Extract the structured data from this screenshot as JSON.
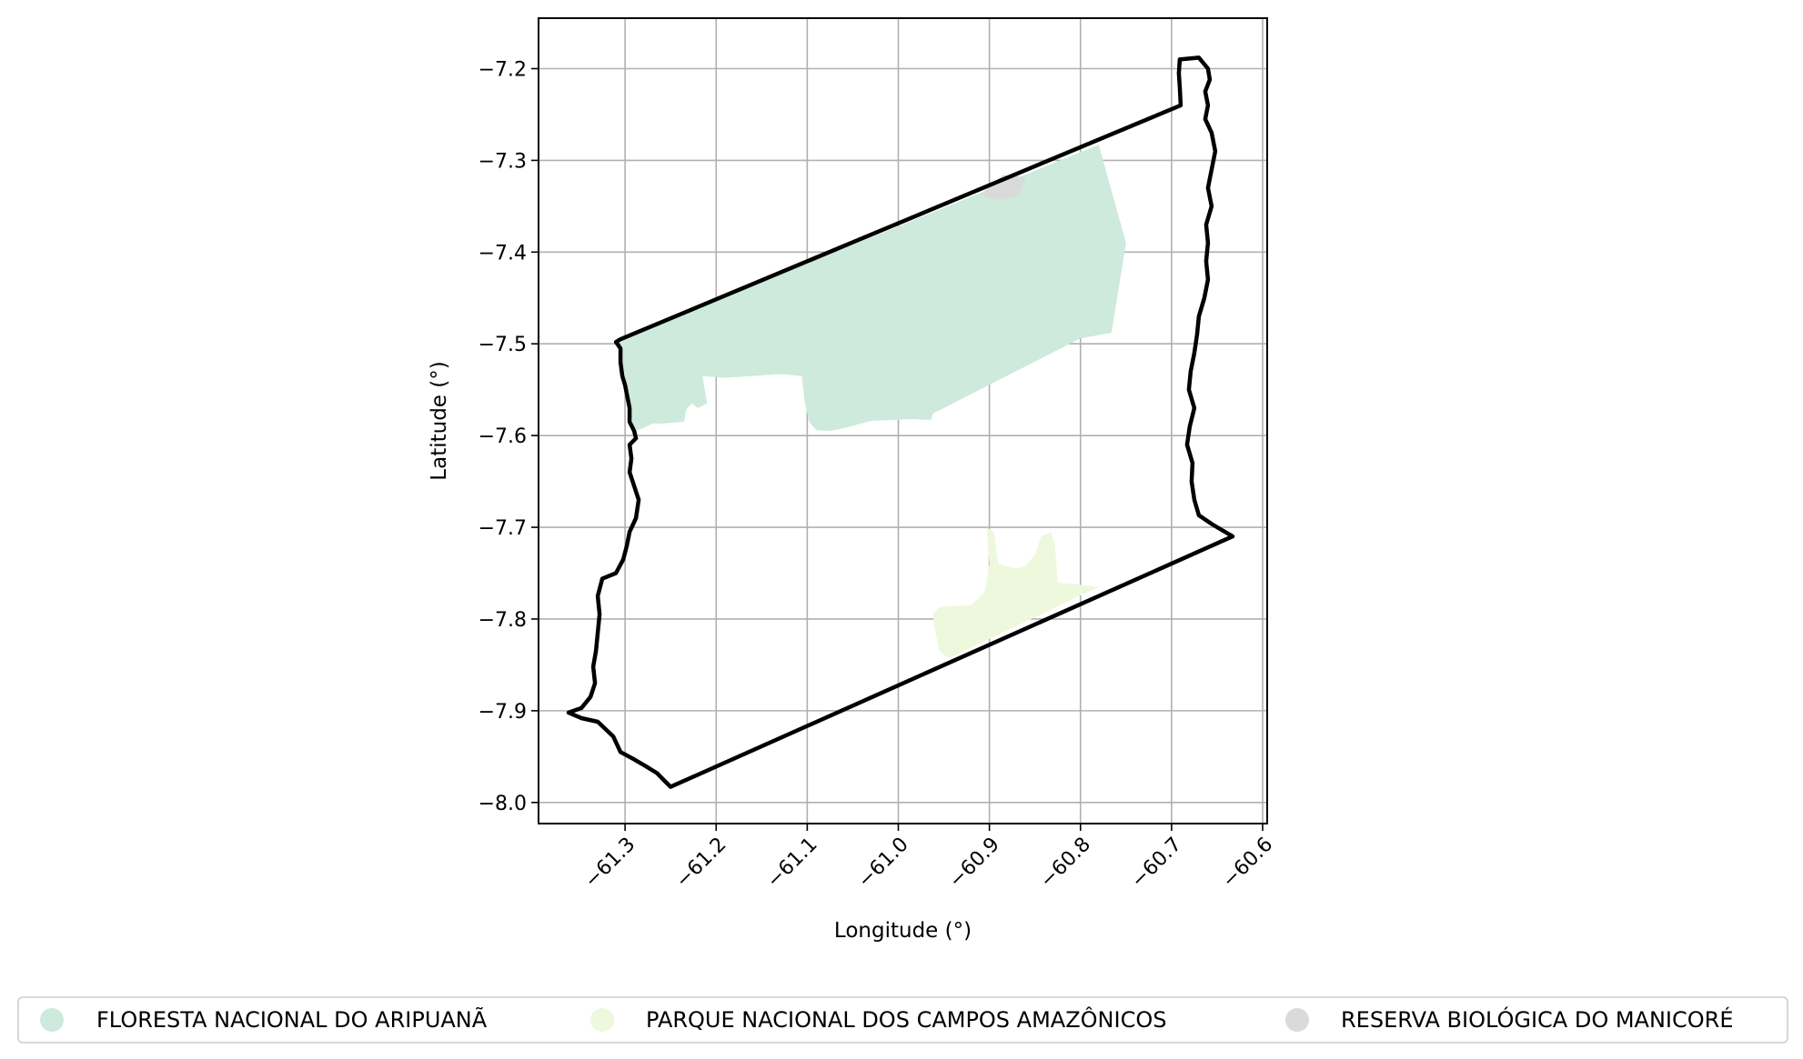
{
  "chart_data": {
    "type": "map",
    "xlabel": "Longitude (°)",
    "ylabel": "Latitude (°)",
    "xlim": [
      -61.395,
      -60.595
    ],
    "ylim": [
      -8.023,
      -7.145
    ],
    "x_ticks": [
      {
        "value": -61.3,
        "label": "−61.3"
      },
      {
        "value": -61.2,
        "label": "−61.2"
      },
      {
        "value": -61.1,
        "label": "−61.1"
      },
      {
        "value": -61.0,
        "label": "−61.0"
      },
      {
        "value": -60.9,
        "label": "−60.9"
      },
      {
        "value": -60.8,
        "label": "−60.8"
      },
      {
        "value": -60.7,
        "label": "−60.7"
      },
      {
        "value": -60.6,
        "label": "−60.6"
      }
    ],
    "y_ticks": [
      {
        "value": -7.2,
        "label": "−7.2"
      },
      {
        "value": -7.3,
        "label": "−7.3"
      },
      {
        "value": -7.4,
        "label": "−7.4"
      },
      {
        "value": -7.5,
        "label": "−7.5"
      },
      {
        "value": -7.6,
        "label": "−7.6"
      },
      {
        "value": -7.7,
        "label": "−7.7"
      },
      {
        "value": -7.8,
        "label": "−7.8"
      },
      {
        "value": -7.9,
        "label": "−7.9"
      },
      {
        "value": -8.0,
        "label": "−8.0"
      }
    ],
    "grid": true,
    "legend_position": "bottom",
    "areas": [
      {
        "name": "FLORESTA NACIONAL DO ARIPUANÃ",
        "color": "#cdeadc",
        "coords": [
          [
            -61.305,
            -7.495
          ],
          [
            -60.78,
            -7.283
          ],
          [
            -60.75,
            -7.39
          ],
          [
            -60.766,
            -7.488
          ],
          [
            -60.8,
            -7.494
          ],
          [
            -60.95,
            -7.57
          ],
          [
            -60.962,
            -7.576
          ],
          [
            -60.964,
            -7.583
          ],
          [
            -60.985,
            -7.582
          ],
          [
            -61.03,
            -7.584
          ],
          [
            -61.06,
            -7.592
          ],
          [
            -61.075,
            -7.595
          ],
          [
            -61.09,
            -7.594
          ],
          [
            -61.098,
            -7.585
          ],
          [
            -61.103,
            -7.562
          ],
          [
            -61.106,
            -7.535
          ],
          [
            -61.13,
            -7.533
          ],
          [
            -61.16,
            -7.535
          ],
          [
            -61.19,
            -7.537
          ],
          [
            -61.215,
            -7.535
          ],
          [
            -61.21,
            -7.565
          ],
          [
            -61.22,
            -7.57
          ],
          [
            -61.227,
            -7.565
          ],
          [
            -61.233,
            -7.572
          ],
          [
            -61.235,
            -7.585
          ],
          [
            -61.26,
            -7.587
          ],
          [
            -61.27,
            -7.587
          ],
          [
            -61.28,
            -7.592
          ],
          [
            -61.29,
            -7.595
          ],
          [
            -61.295,
            -7.57
          ],
          [
            -61.3,
            -7.545
          ]
        ]
      },
      {
        "name": "PARQUE NACIONAL DOS CAMPOS AMAZÔNICOS",
        "color": "#eef8dc",
        "coords": [
          [
            -60.903,
            -7.7
          ],
          [
            -60.895,
            -7.705
          ],
          [
            -60.89,
            -7.74
          ],
          [
            -60.87,
            -7.745
          ],
          [
            -60.86,
            -7.742
          ],
          [
            -60.85,
            -7.73
          ],
          [
            -60.843,
            -7.71
          ],
          [
            -60.832,
            -7.705
          ],
          [
            -60.828,
            -7.72
          ],
          [
            -60.825,
            -7.76
          ],
          [
            -60.78,
            -7.765
          ],
          [
            -60.945,
            -7.843
          ],
          [
            -60.955,
            -7.835
          ],
          [
            -60.96,
            -7.81
          ],
          [
            -60.962,
            -7.795
          ],
          [
            -60.955,
            -7.787
          ],
          [
            -60.92,
            -7.785
          ],
          [
            -60.905,
            -7.77
          ],
          [
            -60.9,
            -7.74
          ]
        ]
      },
      {
        "name": "RESERVA BIOLÓGICA DO MANICORÉ",
        "color": "#dadada",
        "coords": [
          [
            -60.885,
            -7.316
          ],
          [
            -60.86,
            -7.318
          ],
          [
            -60.868,
            -7.338
          ],
          [
            -60.875,
            -7.34
          ],
          [
            -60.888,
            -7.343
          ],
          [
            -60.895,
            -7.342
          ],
          [
            -60.91,
            -7.337
          ]
        ]
      }
    ],
    "outline": {
      "name": "municipality-boundary",
      "color": "#000000",
      "coords": [
        [
          -60.69,
          -7.24
        ],
        [
          -60.691,
          -7.22
        ],
        [
          -60.692,
          -7.205
        ],
        [
          -60.691,
          -7.19
        ],
        [
          -60.67,
          -7.188
        ],
        [
          -60.66,
          -7.2
        ],
        [
          -60.658,
          -7.212
        ],
        [
          -60.663,
          -7.225
        ],
        [
          -60.66,
          -7.24
        ],
        [
          -60.663,
          -7.255
        ],
        [
          -60.656,
          -7.27
        ],
        [
          -60.652,
          -7.29
        ],
        [
          -60.656,
          -7.31
        ],
        [
          -60.66,
          -7.33
        ],
        [
          -60.656,
          -7.35
        ],
        [
          -60.662,
          -7.37
        ],
        [
          -60.66,
          -7.39
        ],
        [
          -60.662,
          -7.41
        ],
        [
          -60.66,
          -7.43
        ],
        [
          -60.664,
          -7.45
        ],
        [
          -60.67,
          -7.47
        ],
        [
          -60.672,
          -7.49
        ],
        [
          -60.675,
          -7.51
        ],
        [
          -60.679,
          -7.53
        ],
        [
          -60.681,
          -7.55
        ],
        [
          -60.675,
          -7.57
        ],
        [
          -60.68,
          -7.59
        ],
        [
          -60.683,
          -7.61
        ],
        [
          -60.677,
          -7.63
        ],
        [
          -60.678,
          -7.65
        ],
        [
          -60.675,
          -7.67
        ],
        [
          -60.67,
          -7.687
        ],
        [
          -60.655,
          -7.697
        ],
        [
          -60.633,
          -7.71
        ],
        [
          -61.25,
          -7.983
        ],
        [
          -61.258,
          -7.975
        ],
        [
          -61.265,
          -7.968
        ],
        [
          -61.278,
          -7.96
        ],
        [
          -61.29,
          -7.953
        ],
        [
          -61.305,
          -7.945
        ],
        [
          -61.313,
          -7.928
        ],
        [
          -61.33,
          -7.912
        ],
        [
          -61.348,
          -7.908
        ],
        [
          -61.362,
          -7.902
        ],
        [
          -61.348,
          -7.897
        ],
        [
          -61.338,
          -7.885
        ],
        [
          -61.333,
          -7.87
        ],
        [
          -61.335,
          -7.852
        ],
        [
          -61.332,
          -7.835
        ],
        [
          -61.33,
          -7.815
        ],
        [
          -61.328,
          -7.795
        ],
        [
          -61.33,
          -7.775
        ],
        [
          -61.325,
          -7.756
        ],
        [
          -61.31,
          -7.75
        ],
        [
          -61.302,
          -7.735
        ],
        [
          -61.298,
          -7.72
        ],
        [
          -61.295,
          -7.705
        ],
        [
          -61.288,
          -7.69
        ],
        [
          -61.285,
          -7.67
        ],
        [
          -61.29,
          -7.655
        ],
        [
          -61.295,
          -7.64
        ],
        [
          -61.293,
          -7.625
        ],
        [
          -61.295,
          -7.61
        ],
        [
          -61.288,
          -7.603
        ],
        [
          -61.29,
          -7.595
        ],
        [
          -61.295,
          -7.585
        ],
        [
          -61.295,
          -7.57
        ],
        [
          -61.298,
          -7.555
        ],
        [
          -61.3,
          -7.545
        ],
        [
          -61.303,
          -7.535
        ],
        [
          -61.305,
          -7.52
        ],
        [
          -61.305,
          -7.505
        ],
        [
          -61.31,
          -7.498
        ],
        [
          -61.305,
          -7.495
        ],
        [
          -60.69,
          -7.24
        ]
      ]
    }
  }
}
